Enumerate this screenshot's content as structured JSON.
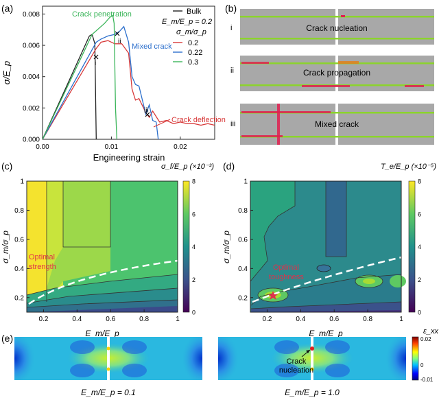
{
  "panel_a": {
    "label": "(a)",
    "chart_data": {
      "type": "line",
      "xlabel": "Engineering strain",
      "ylabel": "σ/E_p",
      "xlim": [
        0,
        0.025
      ],
      "ylim": [
        0,
        0.0085
      ],
      "xticks": [
        "0.00",
        "0.01",
        "0.02"
      ],
      "yticks": [
        "0.000",
        "0.002",
        "0.004",
        "0.006",
        "0.008"
      ],
      "legend_title": "E_m/E_p = 0.2",
      "legend_subtitle": "σ_m/σ_p",
      "series": [
        {
          "name": "Bulk",
          "color": "#222222",
          "x": [
            0,
            0.0068,
            0.0072,
            0.0076,
            0.0077,
            0.0078,
            0.008
          ],
          "y": [
            0,
            0.0066,
            0.0067,
            0.0061,
            0.003,
            0.0,
            0.0
          ]
        },
        {
          "name": "0.2",
          "color": "#d83a3a",
          "x": [
            0,
            0.0078,
            0.0085,
            0.0095,
            0.0105,
            0.0115,
            0.0125,
            0.013,
            0.0135,
            0.014,
            0.015,
            0.0155,
            0.016,
            0.017,
            0.018,
            0.019,
            0.02,
            0.021,
            0.022,
            0.023,
            0.024,
            0.025
          ],
          "y": [
            0,
            0.0058,
            0.0062,
            0.0063,
            0.0061,
            0.0061,
            0.0055,
            0.0032,
            0.0025,
            0.0026,
            0.0017,
            0.0014,
            0.0018,
            0.0011,
            0.0012,
            0.001,
            0.0011,
            0.001,
            0.001,
            0.0009,
            0.001,
            0.0009
          ]
        },
        {
          "name": "0.22",
          "color": "#2c6fcc",
          "x": [
            0,
            0.0078,
            0.0085,
            0.0095,
            0.0105,
            0.0112,
            0.0118,
            0.0125,
            0.013,
            0.0135,
            0.014,
            0.015,
            0.0155,
            0.016,
            0.0165,
            0.0168,
            0.017
          ],
          "y": [
            0,
            0.0062,
            0.0064,
            0.0066,
            0.0067,
            0.0069,
            0.0072,
            0.0062,
            0.004,
            0.0035,
            0.0034,
            0.0016,
            0.0022,
            0.0012,
            0.0011,
            0.0,
            0.0
          ]
        },
        {
          "name": "0.3",
          "color": "#3bb55a",
          "x": [
            0,
            0.0072,
            0.009,
            0.0098,
            0.0102,
            0.0104,
            0.0106,
            0.0108
          ],
          "y": [
            0,
            0.0067,
            0.0074,
            0.0078,
            0.0079,
            0.0074,
            0.002,
            0.0
          ]
        }
      ],
      "annotations": [
        {
          "text": "Crack penetration",
          "color": "#3bb55a"
        },
        {
          "text": "Mixed crack",
          "color": "#2c6fcc"
        },
        {
          "text": "Crack deflection",
          "color": "#d83a3a"
        },
        {
          "text": "i",
          "color": "#222222"
        },
        {
          "text": "ii",
          "color": "#222222"
        },
        {
          "text": "iii",
          "color": "#222222"
        }
      ]
    }
  },
  "panel_b": {
    "label": "(b)",
    "rows": [
      {
        "roman": "i",
        "caption": "Crack nucleation"
      },
      {
        "roman": "ii",
        "caption": "Crack propagation"
      },
      {
        "roman": "iii",
        "caption": "Mixed crack"
      }
    ]
  },
  "panel_c": {
    "label": "(c)",
    "xlabel": "E_m/E_p",
    "ylabel": "σ_m/σ_p",
    "colorbar_title": "σ_f/E_p (×10⁻³)",
    "colorbar_ticks": [
      "0",
      "2",
      "4",
      "6",
      "8"
    ],
    "xticks": [
      "0.2",
      "0.4",
      "0.6",
      "0.8",
      "1"
    ],
    "yticks": [
      "0.2",
      "0.4",
      "0.6",
      "0.8",
      "1"
    ],
    "annotation": {
      "line1": "Optimal",
      "line2": "strength",
      "color": "#e0304a"
    }
  },
  "panel_d": {
    "label": "(d)",
    "xlabel": "E_m/E_p",
    "ylabel": "σ_m/σ_p",
    "colorbar_title": "T_e/E_p (×10⁻⁵)",
    "colorbar_ticks": [
      "0",
      "2",
      "4",
      "6",
      "8"
    ],
    "xticks": [
      "0.2",
      "0.4",
      "0.6",
      "0.8",
      "1"
    ],
    "yticks": [
      "0.2",
      "0.4",
      "0.6",
      "0.8",
      "1"
    ],
    "annotation": {
      "line1": "Optimal",
      "line2": "toughness",
      "color": "#e0304a"
    }
  },
  "panel_e": {
    "label": "(e)",
    "left_caption": "E_m/E_p = 0.1",
    "right_caption": "E_m/E_p = 1.0",
    "annotation_line1": "Crack",
    "annotation_line2": "nucleation",
    "colorbar_title": "ε_xx",
    "colorbar_max": "0.02",
    "colorbar_zero": "0",
    "colorbar_min": "-0.01"
  }
}
